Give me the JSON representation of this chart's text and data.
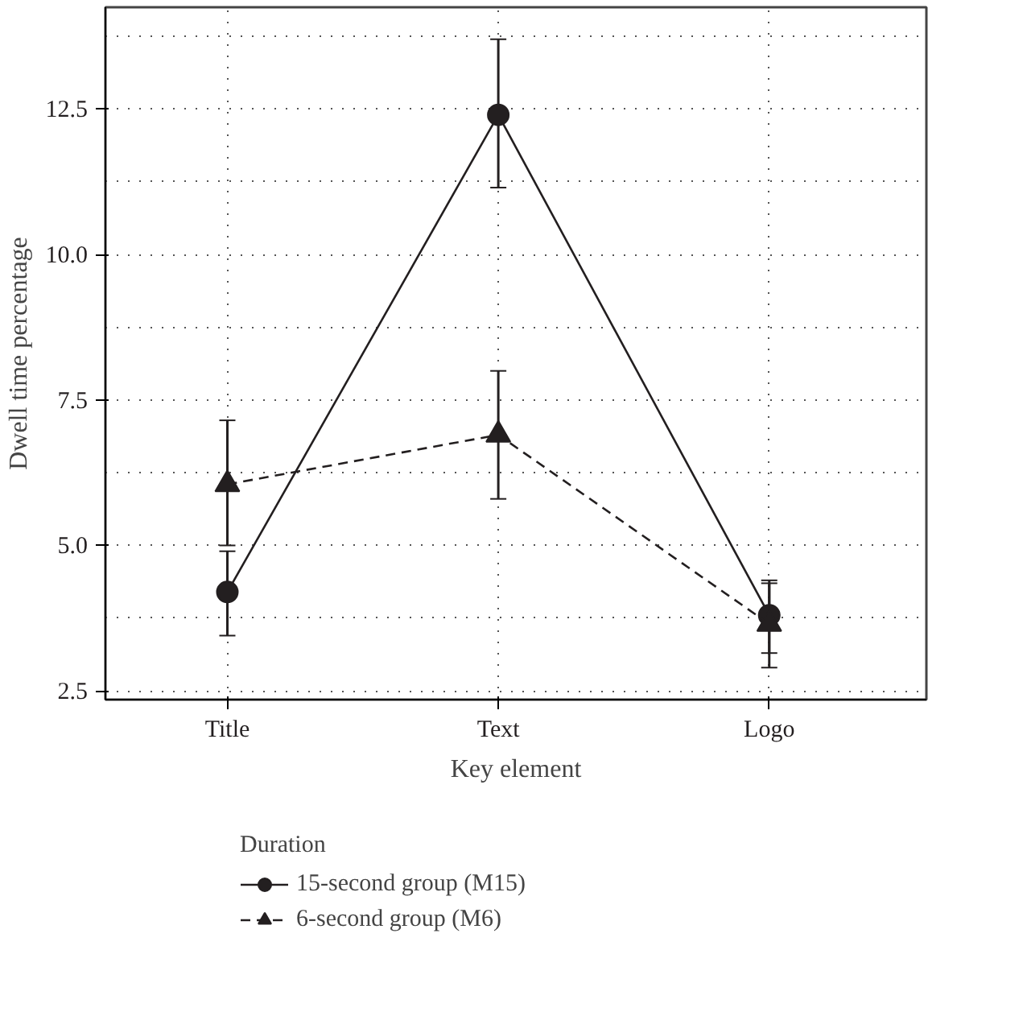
{
  "chart_data": {
    "type": "line",
    "xlabel": "Key element",
    "ylabel": "Dwell time percentage",
    "legend_title": "Duration",
    "categories": [
      "Title",
      "Text",
      "Logo"
    ],
    "series": [
      {
        "name": "15-second group (M15)",
        "color": "#231f20",
        "values": [
          4.2,
          12.4,
          3.8
        ],
        "errors": [
          [
            3.45,
            4.9
          ],
          [
            11.15,
            13.7
          ],
          [
            3.15,
            4.35
          ]
        ],
        "marker": "circle",
        "line_style": "solid"
      },
      {
        "name": "6-second group (M6)",
        "color": "#231f20",
        "values": [
          6.05,
          6.9,
          3.65
        ],
        "errors": [
          [
            5.0,
            7.15
          ],
          [
            5.8,
            8.0
          ],
          [
            2.9,
            4.4
          ]
        ],
        "marker": "triangle",
        "line_style": "dashed"
      }
    ],
    "ylim": [
      2.35,
      14.25
    ],
    "yticks": [
      2.5,
      {
        "value": 5,
        "label": "5.0"
      },
      7.5,
      {
        "value": 10,
        "label": "10.0"
      },
      12.5
    ],
    "grid": true,
    "legend": "bottom"
  }
}
